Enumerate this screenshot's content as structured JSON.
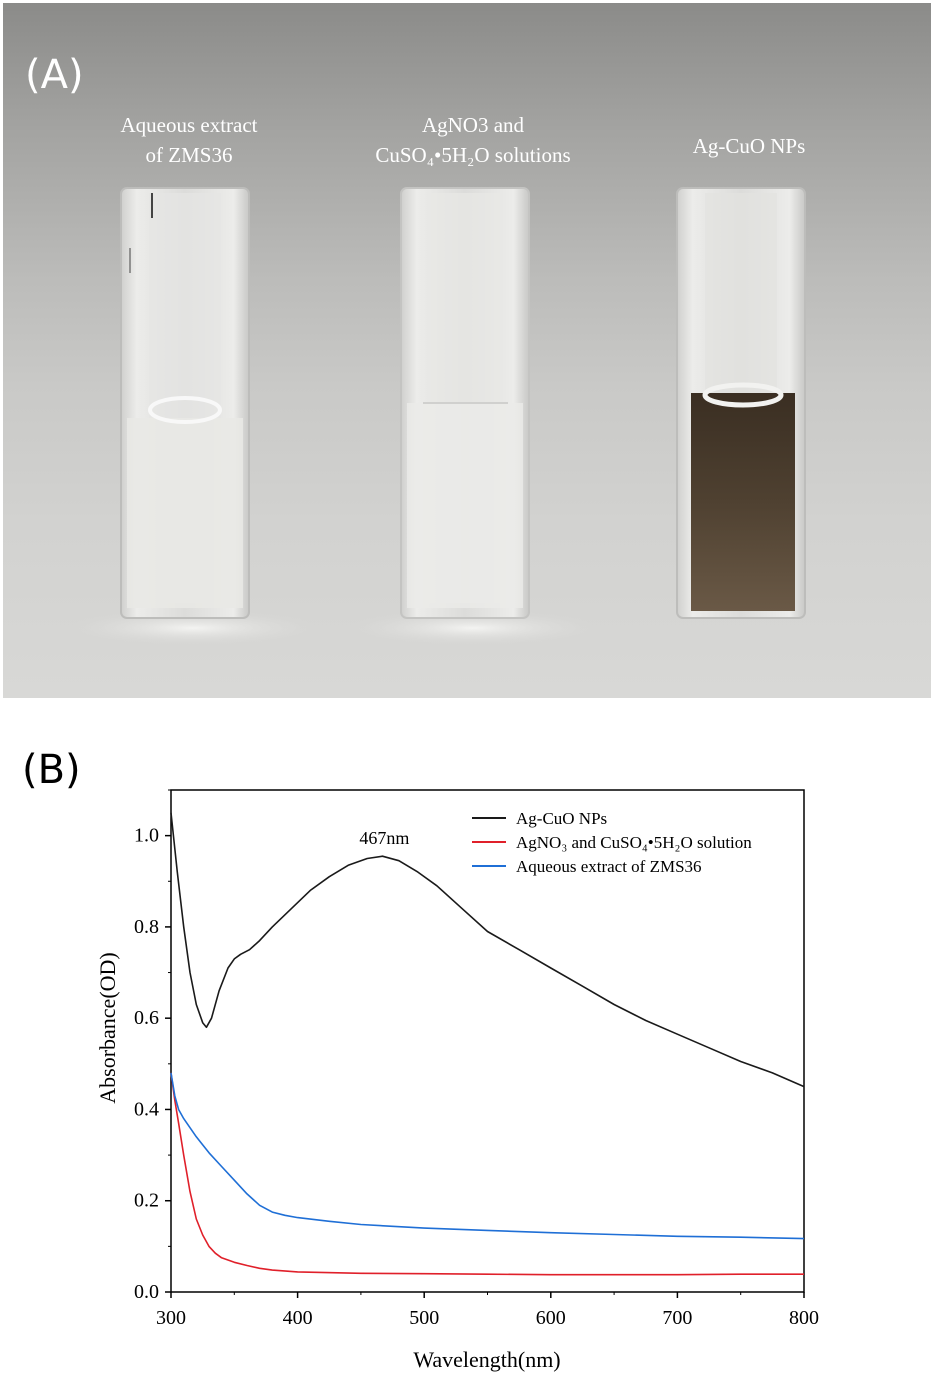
{
  "panel_a": {
    "letter": "(A)",
    "labels": [
      "Aqueous extract\nof ZMS36",
      "AgNO3 and\nCuSO₄•5H₂O solutions",
      "Ag-CuO NPs"
    ]
  },
  "panel_b": {
    "letter": "(B)"
  },
  "chart_data": {
    "type": "line",
    "title": "",
    "xlabel": "Wavelength(nm)",
    "ylabel": "Absorbance(OD)",
    "xlim": [
      300,
      800
    ],
    "ylim": [
      0.0,
      1.1
    ],
    "xticks": [
      "300",
      "400",
      "500",
      "600",
      "700",
      "800"
    ],
    "yticks": [
      "0.0",
      "0.2",
      "0.4",
      "0.6",
      "0.8",
      "1.0"
    ],
    "legend_position": "top-right",
    "annotation": {
      "text": "467nm",
      "x": 467,
      "y": 0.955
    },
    "series": [
      {
        "name": "Ag-CuO NPs",
        "color": "#1a1a1a",
        "x": [
          300,
          305,
          310,
          315,
          320,
          325,
          328,
          332,
          338,
          345,
          350,
          355,
          362,
          370,
          380,
          395,
          410,
          425,
          440,
          455,
          467,
          480,
          495,
          510,
          530,
          550,
          575,
          600,
          625,
          650,
          675,
          700,
          725,
          750,
          775,
          800
        ],
        "y": [
          1.05,
          0.92,
          0.8,
          0.7,
          0.63,
          0.59,
          0.58,
          0.6,
          0.66,
          0.71,
          0.73,
          0.74,
          0.75,
          0.77,
          0.8,
          0.84,
          0.88,
          0.91,
          0.935,
          0.95,
          0.955,
          0.945,
          0.92,
          0.89,
          0.84,
          0.79,
          0.75,
          0.71,
          0.67,
          0.63,
          0.595,
          0.565,
          0.535,
          0.505,
          0.48,
          0.45
        ]
      },
      {
        "name": "AgNO₃ and CuSO₄•5H₂O solution",
        "color": "#e0202a",
        "x": [
          300,
          303,
          306,
          310,
          315,
          320,
          325,
          330,
          335,
          340,
          350,
          360,
          370,
          380,
          400,
          450,
          500,
          550,
          600,
          650,
          700,
          750,
          800
        ],
        "y": [
          0.48,
          0.42,
          0.37,
          0.3,
          0.22,
          0.16,
          0.125,
          0.1,
          0.085,
          0.075,
          0.065,
          0.058,
          0.052,
          0.048,
          0.044,
          0.041,
          0.04,
          0.039,
          0.038,
          0.038,
          0.038,
          0.039,
          0.039
        ]
      },
      {
        "name": "Aqueous extract of ZMS36",
        "color": "#1f6fd6",
        "x": [
          300,
          303,
          306,
          310,
          320,
          330,
          340,
          350,
          360,
          370,
          380,
          390,
          400,
          425,
          450,
          500,
          550,
          600,
          650,
          700,
          750,
          800
        ],
        "y": [
          0.48,
          0.43,
          0.4,
          0.38,
          0.34,
          0.305,
          0.275,
          0.245,
          0.215,
          0.19,
          0.175,
          0.168,
          0.163,
          0.155,
          0.148,
          0.14,
          0.135,
          0.13,
          0.126,
          0.122,
          0.12,
          0.117
        ]
      }
    ]
  }
}
